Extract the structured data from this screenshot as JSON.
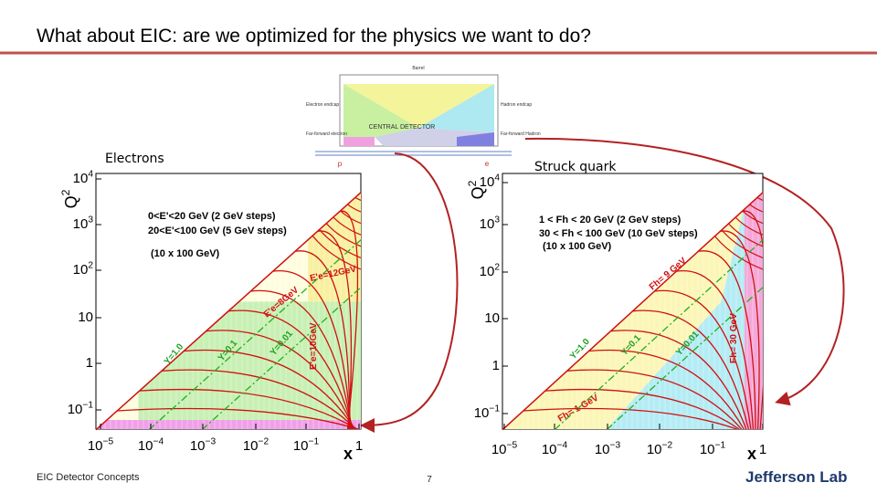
{
  "title": "What about EIC: are we optimized for the physics we want to do?",
  "diagram": {
    "labels": [
      "Barrel",
      "Electron endcap",
      "Hadron endcap",
      "CENTRAL DETECTOR",
      "Far-forward electron",
      "Far-forward Hadron",
      "p",
      "e"
    ]
  },
  "plots": [
    {
      "heading": "Electrons",
      "y_axis_label": {
        "base": "Q",
        "exp": "2"
      },
      "x_axis_label": "x",
      "y_ticks": [
        {
          "base": "10",
          "exp": "4"
        },
        {
          "base": "10",
          "exp": "3"
        },
        {
          "base": "10",
          "exp": "2"
        },
        {
          "base": "10"
        },
        {
          "base": "1"
        },
        {
          "base": "10",
          "exp": "−1"
        }
      ],
      "x_ticks": [
        {
          "base": "10",
          "exp": "−5"
        },
        {
          "base": "10",
          "exp": "−4"
        },
        {
          "base": "10",
          "exp": "−3"
        },
        {
          "base": "10",
          "exp": "−2"
        },
        {
          "base": "10",
          "exp": "−1"
        },
        {
          "base": "1"
        }
      ],
      "annotations": [
        "0<E'<20 GeV (2 GeV steps)",
        "20<E'<100 GeV (5 GeV steps)",
        "(10 x 100 GeV)",
        "E'e=12GeV",
        "E'e=8GeV",
        "E'e=10GeV",
        "Y=1.0",
        "Y=0.1",
        "Y=0.01"
      ]
    },
    {
      "heading": "Struck quark",
      "y_axis_label": {
        "base": "Q",
        "exp": "2"
      },
      "x_axis_label": "x",
      "y_ticks": [
        {
          "base": "10",
          "exp": "4"
        },
        {
          "base": "10",
          "exp": "3"
        },
        {
          "base": "10",
          "exp": "2"
        },
        {
          "base": "10"
        },
        {
          "base": "1"
        },
        {
          "base": "10",
          "exp": "−1"
        }
      ],
      "x_ticks": [
        {
          "base": "10",
          "exp": "−5"
        },
        {
          "base": "10",
          "exp": "−4"
        },
        {
          "base": "10",
          "exp": "−3"
        },
        {
          "base": "10",
          "exp": "−2"
        },
        {
          "base": "10",
          "exp": "−1"
        },
        {
          "base": "1"
        }
      ],
      "annotations": [
        "1 < Fh < 20 GeV (2 GeV steps)",
        "30 < Fh < 100 GeV (10 GeV steps)",
        "(10 x 100 GeV)",
        "Fh= 9 GeV",
        "Fh= 30 GeV",
        "Fh= 1 GeV",
        "Y=1.0",
        "Y=0.1",
        "Y=0.01"
      ]
    }
  ],
  "footer": {
    "left": "EIC Detector Concepts",
    "page": "7",
    "logo": "Jefferson Lab"
  }
}
